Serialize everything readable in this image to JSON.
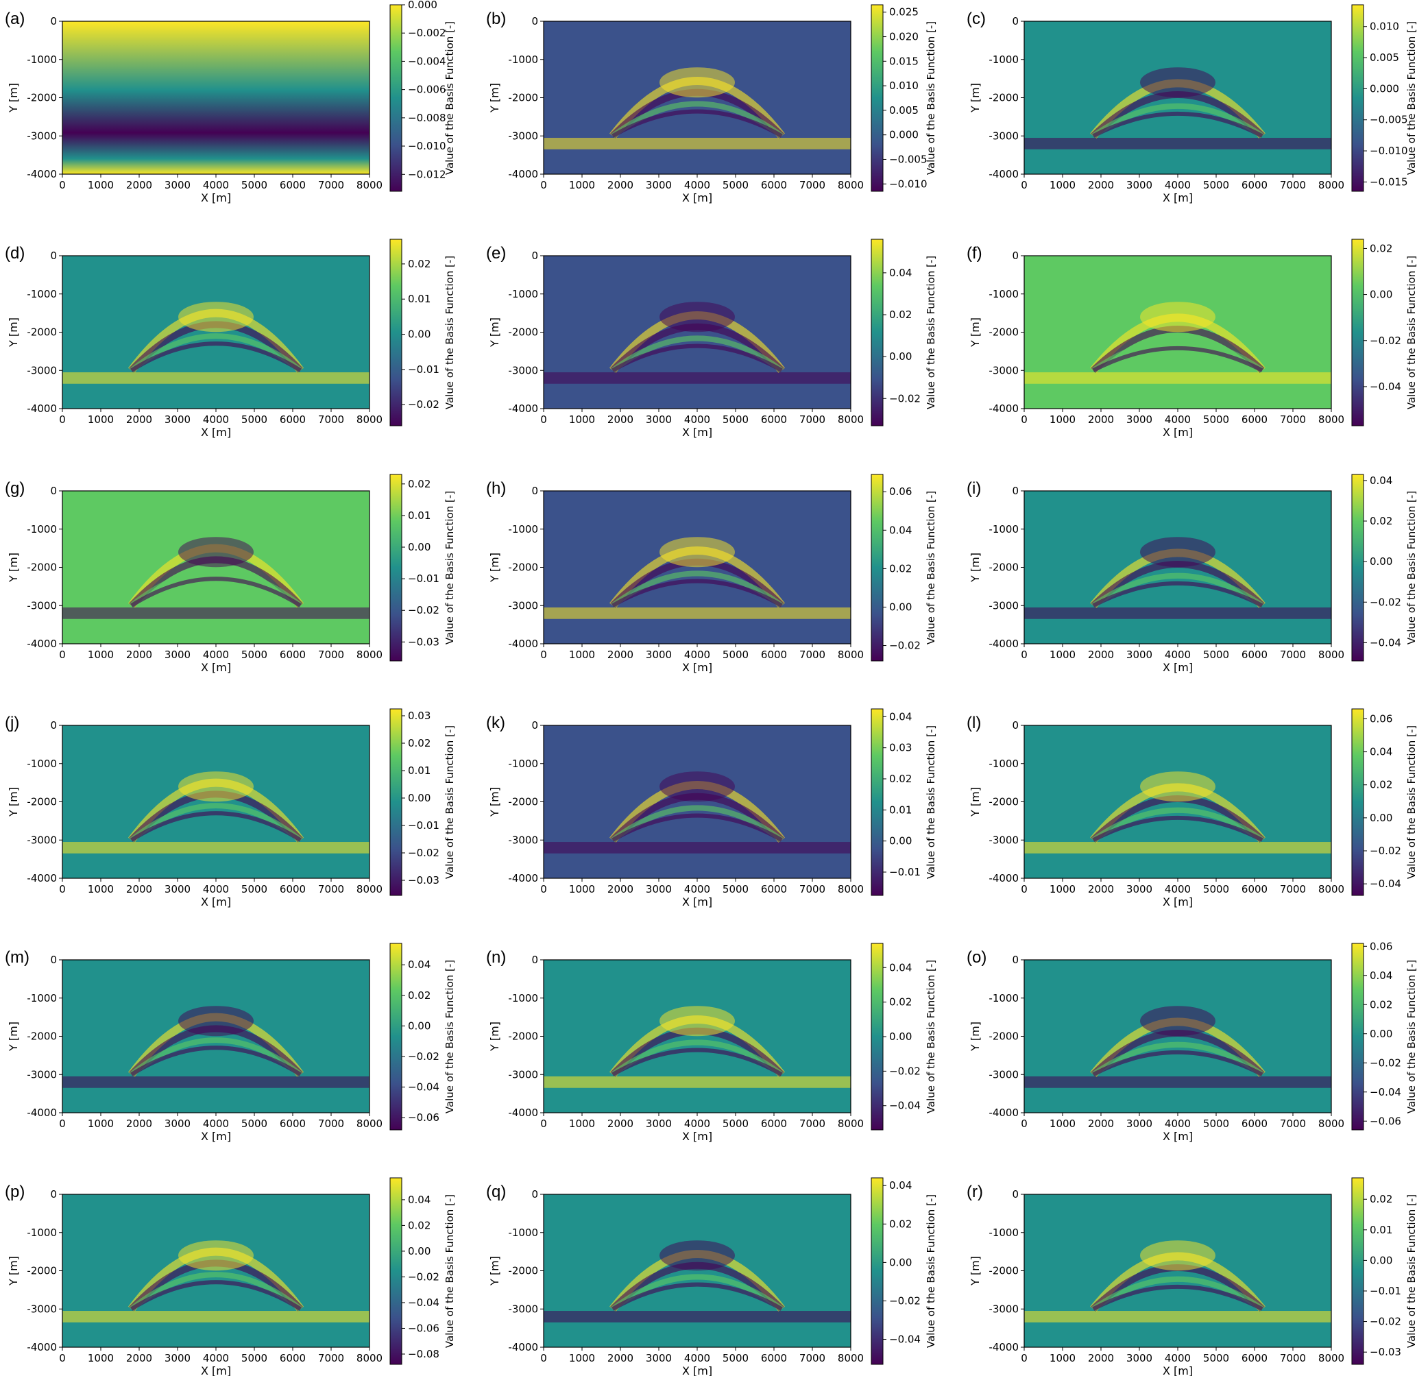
{
  "figure": {
    "colormap": [
      "#440154",
      "#3b528b",
      "#21918c",
      "#5ec962",
      "#fde725"
    ],
    "x_axis_label": "X [m]",
    "y_axis_label": "Y [m]",
    "colorbar_label": "Value of the Basis Function [-]"
  },
  "chart_data": [
    {
      "type": "heatmap",
      "panel": "(a)",
      "xlabel": "X [m]",
      "ylabel": "Y [m]",
      "xlim": [
        0,
        8000
      ],
      "ylim": [
        -4000,
        0
      ],
      "x_ticks": [
        0,
        1000,
        2000,
        3000,
        4000,
        5000,
        6000,
        7000,
        8000
      ],
      "y_ticks": [
        0,
        -1000,
        -2000,
        -3000,
        -4000
      ],
      "colorbar": {
        "label": "Value of the Basis Function [-]",
        "ticks": [
          0.0,
          -0.002,
          -0.004,
          -0.006,
          -0.008,
          -0.01,
          -0.012
        ],
        "tick_labels": [
          "0.000",
          "−0.002",
          "−0.004",
          "−0.006",
          "−0.008",
          "−0.010",
          "−0.012"
        ],
        "range": [
          -0.0132,
          0.0
        ]
      }
    },
    {
      "type": "heatmap",
      "panel": "(b)",
      "xlabel": "X [m]",
      "ylabel": "Y [m]",
      "xlim": [
        0,
        8000
      ],
      "ylim": [
        -4000,
        0
      ],
      "x_ticks": [
        0,
        1000,
        2000,
        3000,
        4000,
        5000,
        6000,
        7000,
        8000
      ],
      "y_ticks": [
        0,
        -1000,
        -2000,
        -3000,
        -4000
      ],
      "colorbar": {
        "label": "Value of the Basis Function [-]",
        "ticks": [
          0.025,
          0.02,
          0.015,
          0.01,
          0.005,
          0.0,
          -0.005,
          -0.01
        ],
        "tick_labels": [
          "0.025",
          "0.020",
          "0.015",
          "0.010",
          "0.005",
          "0.000",
          "−0.005",
          "−0.010"
        ],
        "range": [
          -0.0115,
          0.0265
        ]
      }
    },
    {
      "type": "heatmap",
      "panel": "(c)",
      "xlabel": "X [m]",
      "ylabel": "Y [m]",
      "xlim": [
        0,
        8000
      ],
      "ylim": [
        -4000,
        0
      ],
      "x_ticks": [
        0,
        1000,
        2000,
        3000,
        4000,
        5000,
        6000,
        7000,
        8000
      ],
      "y_ticks": [
        0,
        -1000,
        -2000,
        -3000,
        -4000
      ],
      "colorbar": {
        "label": "Value of the Basis Function [-]",
        "ticks": [
          0.01,
          0.005,
          0.0,
          -0.005,
          -0.01,
          -0.015
        ],
        "tick_labels": [
          "0.010",
          "0.005",
          "0.000",
          "−0.005",
          "−0.010",
          "−0.015"
        ],
        "range": [
          -0.0165,
          0.0135
        ]
      }
    },
    {
      "type": "heatmap",
      "panel": "(d)",
      "xlabel": "X [m]",
      "ylabel": "Y [m]",
      "xlim": [
        0,
        8000
      ],
      "ylim": [
        -4000,
        0
      ],
      "x_ticks": [
        0,
        1000,
        2000,
        3000,
        4000,
        5000,
        6000,
        7000,
        8000
      ],
      "y_ticks": [
        0,
        -1000,
        -2000,
        -3000,
        -4000
      ],
      "colorbar": {
        "label": "Value of the Basis Function [-]",
        "ticks": [
          0.02,
          0.01,
          0.0,
          -0.01,
          -0.02
        ],
        "tick_labels": [
          "0.02",
          "0.01",
          "0.00",
          "−0.01",
          "−0.02"
        ],
        "range": [
          -0.026,
          0.027
        ]
      }
    },
    {
      "type": "heatmap",
      "panel": "(e)",
      "xlabel": "X [m]",
      "ylabel": "Y [m]",
      "xlim": [
        0,
        8000
      ],
      "ylim": [
        -4000,
        0
      ],
      "x_ticks": [
        0,
        1000,
        2000,
        3000,
        4000,
        5000,
        6000,
        7000,
        8000
      ],
      "y_ticks": [
        0,
        -1000,
        -2000,
        -3000,
        -4000
      ],
      "colorbar": {
        "label": "Value of the Basis Function [-]",
        "ticks": [
          0.04,
          0.02,
          0.0,
          -0.02
        ],
        "tick_labels": [
          "0.04",
          "0.02",
          "0.00",
          "−0.02"
        ],
        "range": [
          -0.033,
          0.056
        ]
      }
    },
    {
      "type": "heatmap",
      "panel": "(f)",
      "xlabel": "X [m]",
      "ylabel": "Y [m]",
      "xlim": [
        0,
        8000
      ],
      "ylim": [
        -4000,
        0
      ],
      "x_ticks": [
        0,
        1000,
        2000,
        3000,
        4000,
        5000,
        6000,
        7000,
        8000
      ],
      "y_ticks": [
        0,
        -1000,
        -2000,
        -3000,
        -4000
      ],
      "colorbar": {
        "label": "Value of the Basis Function [-]",
        "ticks": [
          0.02,
          0.0,
          -0.02,
          -0.04
        ],
        "tick_labels": [
          "0.02",
          "0.00",
          "−0.02",
          "−0.04"
        ],
        "range": [
          -0.057,
          0.024
        ]
      }
    },
    {
      "type": "heatmap",
      "panel": "(g)",
      "xlabel": "X [m]",
      "ylabel": "Y [m]",
      "xlim": [
        0,
        8000
      ],
      "ylim": [
        -4000,
        0
      ],
      "x_ticks": [
        0,
        1000,
        2000,
        3000,
        4000,
        5000,
        6000,
        7000,
        8000
      ],
      "y_ticks": [
        0,
        -1000,
        -2000,
        -3000,
        -4000
      ],
      "colorbar": {
        "label": "Value of the Basis Function [-]",
        "ticks": [
          0.02,
          0.01,
          0.0,
          -0.01,
          -0.02,
          -0.03
        ],
        "tick_labels": [
          "0.02",
          "0.01",
          "0.00",
          "−0.01",
          "−0.02",
          "−0.03"
        ],
        "range": [
          -0.036,
          0.023
        ]
      }
    },
    {
      "type": "heatmap",
      "panel": "(h)",
      "xlabel": "X [m]",
      "ylabel": "Y [m]",
      "xlim": [
        0,
        8000
      ],
      "ylim": [
        -4000,
        0
      ],
      "x_ticks": [
        0,
        1000,
        2000,
        3000,
        4000,
        5000,
        6000,
        7000,
        8000
      ],
      "y_ticks": [
        0,
        -1000,
        -2000,
        -3000,
        -4000
      ],
      "colorbar": {
        "label": "Value of the Basis Function [-]",
        "ticks": [
          0.06,
          0.04,
          0.02,
          0.0,
          -0.02
        ],
        "tick_labels": [
          "0.06",
          "0.04",
          "0.02",
          "0.00",
          "−0.02"
        ],
        "range": [
          -0.028,
          0.069
        ]
      }
    },
    {
      "type": "heatmap",
      "panel": "(i)",
      "xlabel": "X [m]",
      "ylabel": "Y [m]",
      "xlim": [
        0,
        8000
      ],
      "ylim": [
        -4000,
        0
      ],
      "x_ticks": [
        0,
        1000,
        2000,
        3000,
        4000,
        5000,
        6000,
        7000,
        8000
      ],
      "y_ticks": [
        0,
        -1000,
        -2000,
        -3000,
        -4000
      ],
      "colorbar": {
        "label": "Value of the Basis Function [-]",
        "ticks": [
          0.04,
          0.02,
          0.0,
          -0.02,
          -0.04
        ],
        "tick_labels": [
          "0.04",
          "0.02",
          "0.00",
          "−0.02",
          "−0.04"
        ],
        "range": [
          -0.049,
          0.043
        ]
      }
    },
    {
      "type": "heatmap",
      "panel": "(j)",
      "xlabel": "X [m]",
      "ylabel": "Y [m]",
      "xlim": [
        0,
        8000
      ],
      "ylim": [
        -4000,
        0
      ],
      "x_ticks": [
        0,
        1000,
        2000,
        3000,
        4000,
        5000,
        6000,
        7000,
        8000
      ],
      "y_ticks": [
        0,
        -1000,
        -2000,
        -3000,
        -4000
      ],
      "colorbar": {
        "label": "Value of the Basis Function [-]",
        "ticks": [
          0.03,
          0.02,
          0.01,
          0.0,
          -0.01,
          -0.02,
          -0.03
        ],
        "tick_labels": [
          "0.03",
          "0.02",
          "0.01",
          "0.00",
          "−0.01",
          "−0.02",
          "−0.03"
        ],
        "range": [
          -0.0355,
          0.0325
        ]
      }
    },
    {
      "type": "heatmap",
      "panel": "(k)",
      "xlabel": "X [m]",
      "ylabel": "Y [m]",
      "xlim": [
        0,
        8000
      ],
      "ylim": [
        -4000,
        0
      ],
      "x_ticks": [
        0,
        1000,
        2000,
        3000,
        4000,
        5000,
        6000,
        7000,
        8000
      ],
      "y_ticks": [
        0,
        -1000,
        -2000,
        -3000,
        -4000
      ],
      "colorbar": {
        "label": "Value of the Basis Function [-]",
        "ticks": [
          0.04,
          0.03,
          0.02,
          0.01,
          0.0,
          -0.01
        ],
        "tick_labels": [
          "0.04",
          "0.03",
          "0.02",
          "0.01",
          "0.00",
          "−0.01"
        ],
        "range": [
          -0.0175,
          0.0425
        ]
      }
    },
    {
      "type": "heatmap",
      "panel": "(l)",
      "xlabel": "X [m]",
      "ylabel": "Y [m]",
      "xlim": [
        0,
        8000
      ],
      "ylim": [
        -4000,
        0
      ],
      "x_ticks": [
        0,
        1000,
        2000,
        3000,
        4000,
        5000,
        6000,
        7000,
        8000
      ],
      "y_ticks": [
        0,
        -1000,
        -2000,
        -3000,
        -4000
      ],
      "colorbar": {
        "label": "Value of the Basis Function [-]",
        "ticks": [
          0.06,
          0.04,
          0.02,
          0.0,
          -0.02,
          -0.04
        ],
        "tick_labels": [
          "0.06",
          "0.04",
          "0.02",
          "0.00",
          "−0.02",
          "−0.04"
        ],
        "range": [
          -0.047,
          0.066
        ]
      }
    },
    {
      "type": "heatmap",
      "panel": "(m)",
      "xlabel": "X [m]",
      "ylabel": "Y [m]",
      "xlim": [
        0,
        8000
      ],
      "ylim": [
        -4000,
        0
      ],
      "x_ticks": [
        0,
        1000,
        2000,
        3000,
        4000,
        5000,
        6000,
        7000,
        8000
      ],
      "y_ticks": [
        0,
        -1000,
        -2000,
        -3000,
        -4000
      ],
      "colorbar": {
        "label": "Value of the Basis Function [-]",
        "ticks": [
          0.04,
          0.02,
          0.0,
          -0.02,
          -0.04,
          -0.06
        ],
        "tick_labels": [
          "0.04",
          "0.02",
          "0.00",
          "−0.02",
          "−0.04",
          "−0.06"
        ],
        "range": [
          -0.068,
          0.054
        ]
      }
    },
    {
      "type": "heatmap",
      "panel": "(n)",
      "xlabel": "X [m]",
      "ylabel": "Y [m]",
      "xlim": [
        0,
        8000
      ],
      "ylim": [
        -4000,
        0
      ],
      "x_ticks": [
        0,
        1000,
        2000,
        3000,
        4000,
        5000,
        6000,
        7000,
        8000
      ],
      "y_ticks": [
        0,
        -1000,
        -2000,
        -3000,
        -4000
      ],
      "colorbar": {
        "label": "Value of the Basis Function [-]",
        "ticks": [
          0.04,
          0.02,
          0.0,
          -0.02,
          -0.04
        ],
        "tick_labels": [
          "0.04",
          "0.02",
          "0.00",
          "−0.02",
          "−0.04"
        ],
        "range": [
          -0.054,
          0.054
        ]
      }
    },
    {
      "type": "heatmap",
      "panel": "(o)",
      "xlabel": "X [m]",
      "ylabel": "Y [m]",
      "xlim": [
        0,
        8000
      ],
      "ylim": [
        -4000,
        0
      ],
      "x_ticks": [
        0,
        1000,
        2000,
        3000,
        4000,
        5000,
        6000,
        7000,
        8000
      ],
      "y_ticks": [
        0,
        -1000,
        -2000,
        -3000,
        -4000
      ],
      "colorbar": {
        "label": "Value of the Basis Function [-]",
        "ticks": [
          0.06,
          0.04,
          0.02,
          0.0,
          -0.02,
          -0.04,
          -0.06
        ],
        "tick_labels": [
          "0.06",
          "0.04",
          "0.02",
          "0.00",
          "−0.02",
          "−0.04",
          "−0.06"
        ],
        "range": [
          -0.066,
          0.062
        ]
      }
    },
    {
      "type": "heatmap",
      "panel": "(p)",
      "xlabel": "X [m]",
      "ylabel": "Y [m]",
      "xlim": [
        0,
        8000
      ],
      "ylim": [
        -4000,
        0
      ],
      "x_ticks": [
        0,
        1000,
        2000,
        3000,
        4000,
        5000,
        6000,
        7000,
        8000
      ],
      "y_ticks": [
        0,
        -1000,
        -2000,
        -3000,
        -4000
      ],
      "colorbar": {
        "label": "Value of the Basis Function [-]",
        "ticks": [
          0.04,
          0.02,
          0.0,
          -0.02,
          -0.04,
          -0.06,
          -0.08
        ],
        "tick_labels": [
          "0.04",
          "0.02",
          "0.00",
          "−0.02",
          "−0.04",
          "−0.06",
          "−0.08"
        ],
        "range": [
          -0.088,
          0.057
        ]
      }
    },
    {
      "type": "heatmap",
      "panel": "(q)",
      "xlabel": "X [m]",
      "ylabel": "Y [m]",
      "xlim": [
        0,
        8000
      ],
      "ylim": [
        -4000,
        0
      ],
      "x_ticks": [
        0,
        1000,
        2000,
        3000,
        4000,
        5000,
        6000,
        7000,
        8000
      ],
      "y_ticks": [
        0,
        -1000,
        -2000,
        -3000,
        -4000
      ],
      "colorbar": {
        "label": "Value of the Basis Function [-]",
        "ticks": [
          0.04,
          0.02,
          0.0,
          -0.02,
          -0.04
        ],
        "tick_labels": [
          "0.04",
          "0.02",
          "0.00",
          "−0.02",
          "−0.04"
        ],
        "range": [
          -0.053,
          0.044
        ]
      }
    },
    {
      "type": "heatmap",
      "panel": "(r)",
      "xlabel": "X [m]",
      "ylabel": "Y [m]",
      "xlim": [
        0,
        8000
      ],
      "ylim": [
        -4000,
        0
      ],
      "x_ticks": [
        0,
        1000,
        2000,
        3000,
        4000,
        5000,
        6000,
        7000,
        8000
      ],
      "y_ticks": [
        0,
        -1000,
        -2000,
        -3000,
        -4000
      ],
      "colorbar": {
        "label": "Value of the Basis Function [-]",
        "ticks": [
          0.02,
          0.01,
          0.0,
          -0.01,
          -0.02,
          -0.03
        ],
        "tick_labels": [
          "0.02",
          "0.01",
          "0.00",
          "−0.01",
          "−0.02",
          "−0.03"
        ],
        "range": [
          -0.034,
          0.027
        ]
      }
    }
  ]
}
